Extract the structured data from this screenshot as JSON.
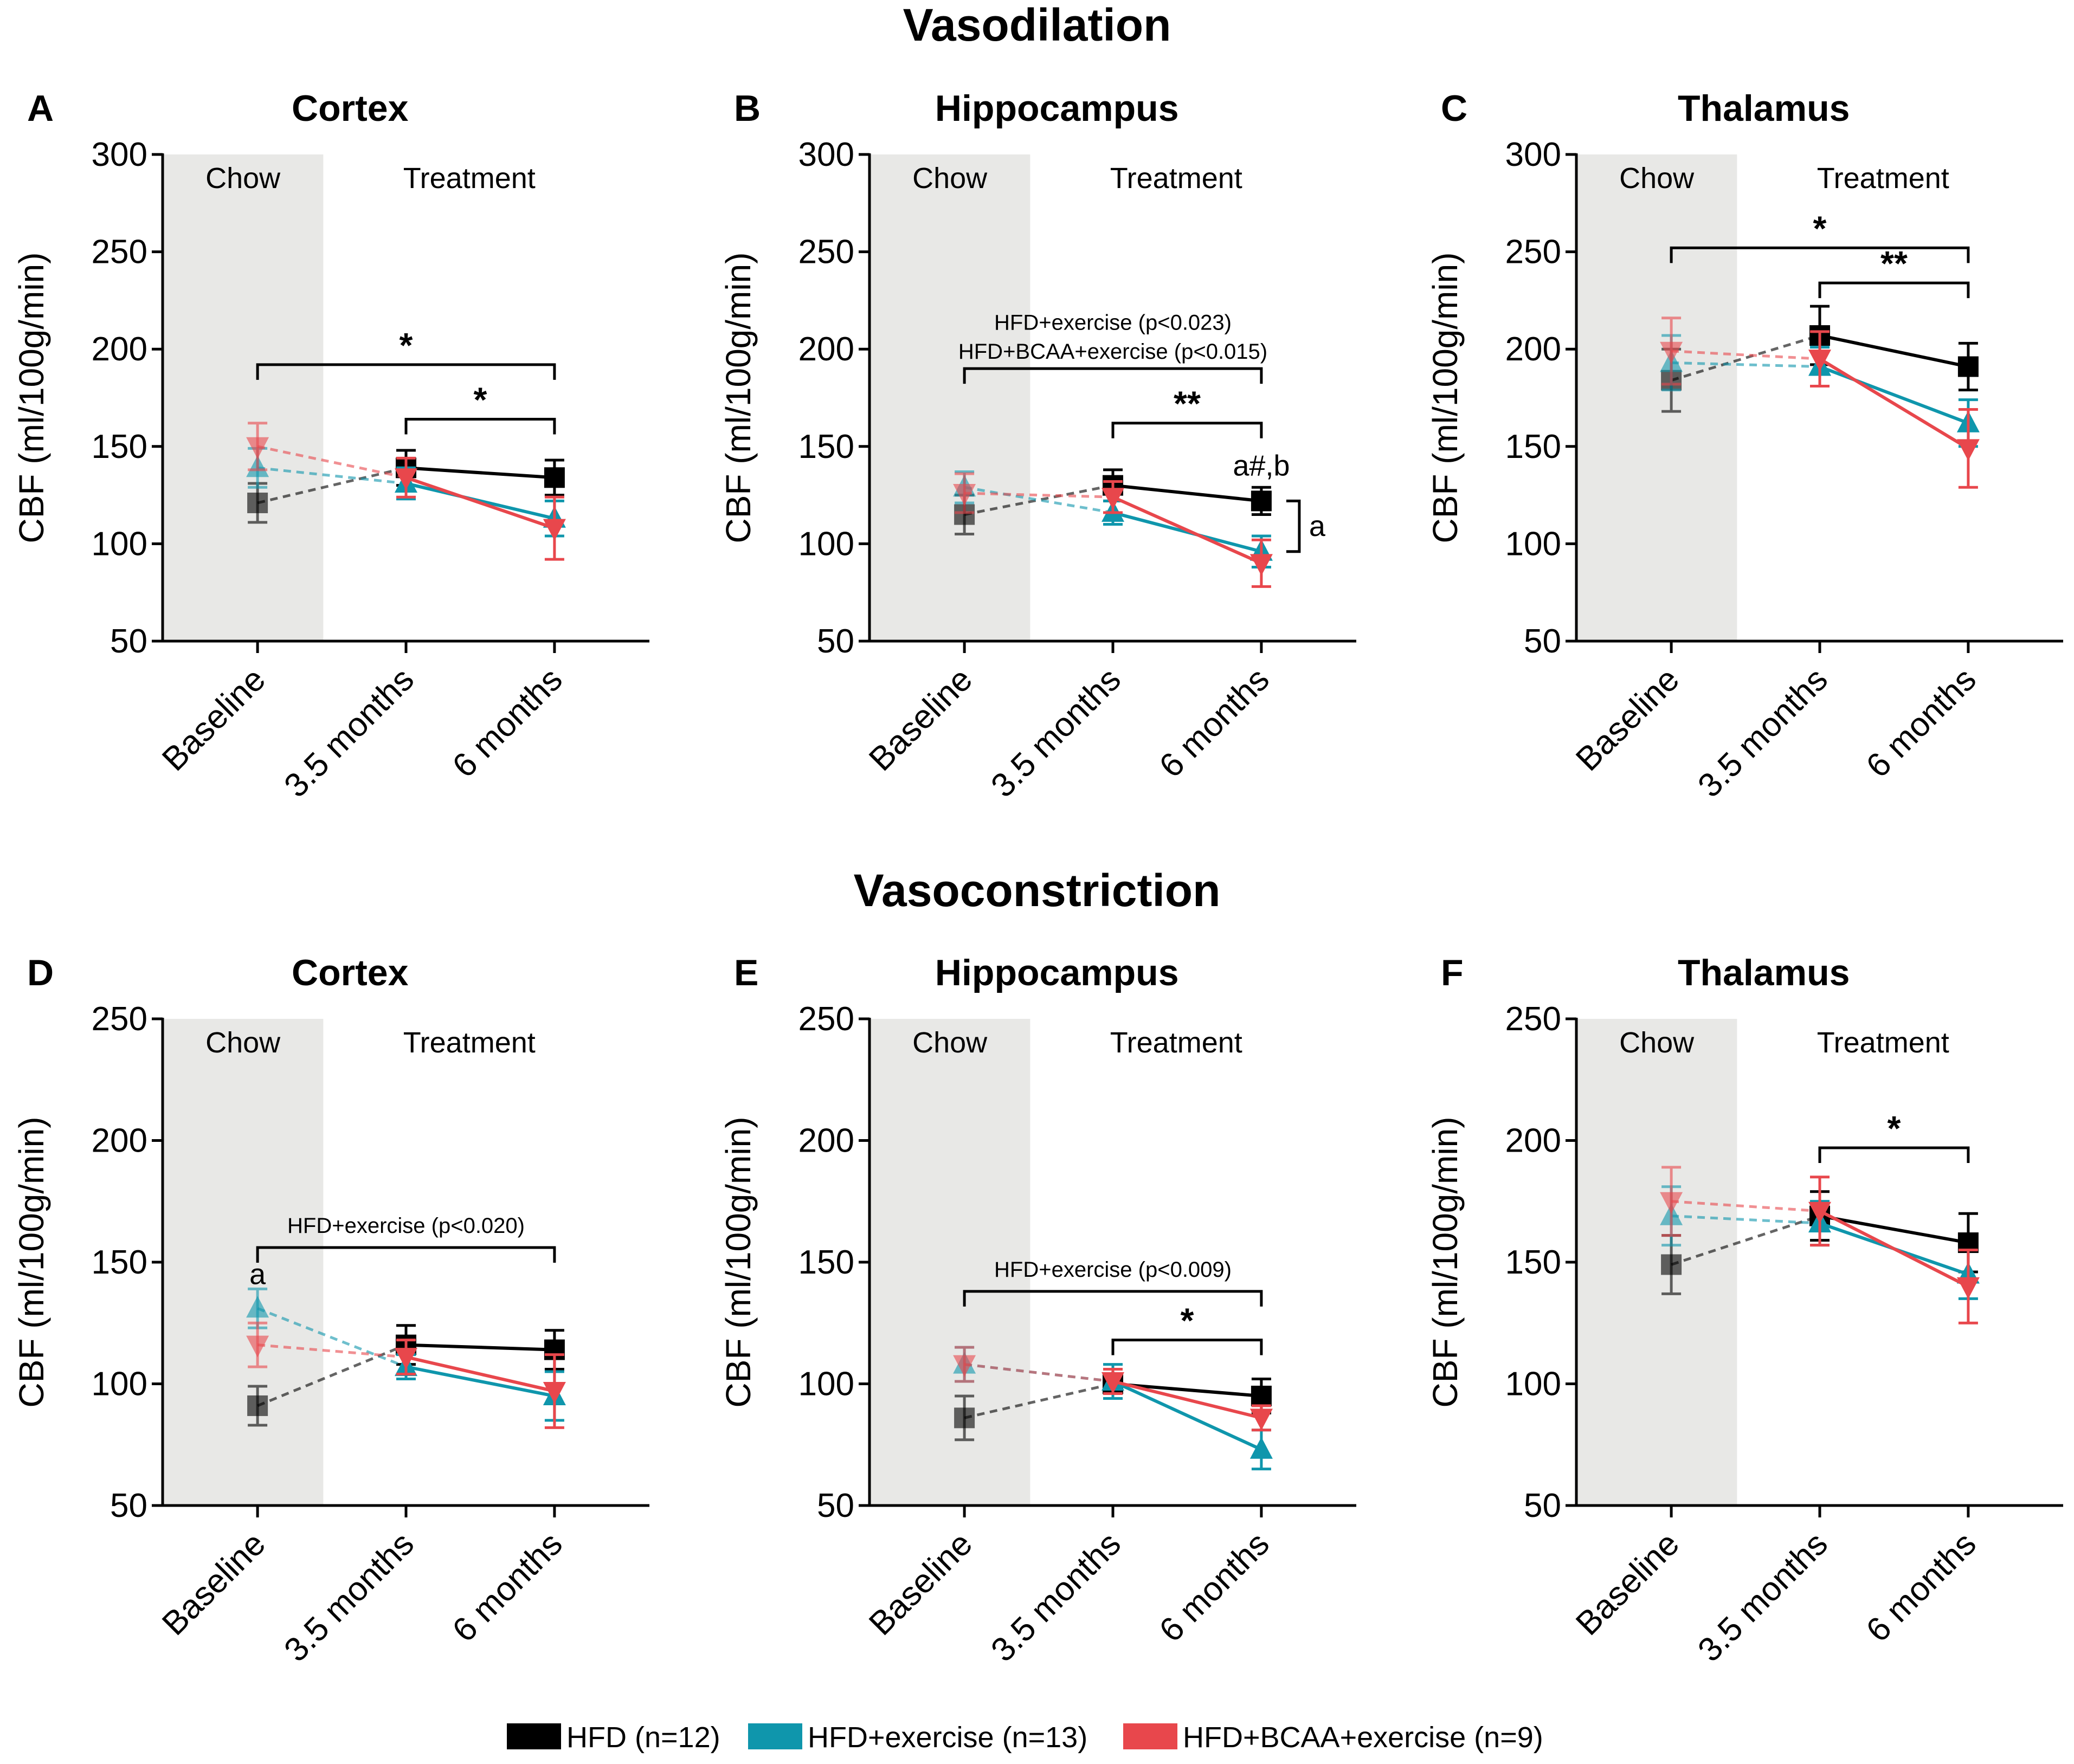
{
  "sections": {
    "top": "Vasodilation",
    "bottom": "Vasoconstriction"
  },
  "legend": [
    {
      "label": "HFD (n=12)",
      "color": "#000000"
    },
    {
      "label": "HFD+exercise (n=13)",
      "color": "#0f96ac"
    },
    {
      "label": "HFD+BCAA+exercise (n=9)",
      "color": "#e8474c"
    }
  ],
  "region_labels": {
    "chow": "Chow",
    "treatment": "Treatment"
  },
  "chart_data": [
    {
      "type": "line",
      "panel": "A",
      "title": "Cortex",
      "section": "Vasodilation",
      "ylabel": "CBF (ml/100g/min)",
      "ylim": [
        50,
        300
      ],
      "yticks": [
        50,
        100,
        150,
        200,
        250,
        300
      ],
      "categories": [
        "Baseline",
        "3.5 months",
        "6 months"
      ],
      "series": [
        {
          "name": "HFD (n=12)",
          "color": "#000000",
          "marker": "square",
          "values": [
            121,
            139,
            134
          ],
          "errors": [
            10,
            9,
            9
          ]
        },
        {
          "name": "HFD+exercise (n=13)",
          "color": "#0f96ac",
          "marker": "triangle-up",
          "values": [
            139,
            131,
            113
          ],
          "errors": [
            10,
            8,
            9
          ]
        },
        {
          "name": "HFD+BCAA+exercise (n=9)",
          "color": "#e8474c",
          "marker": "triangle-down",
          "values": [
            150,
            134,
            108
          ],
          "errors": [
            12,
            10,
            16
          ]
        }
      ],
      "annotations": {
        "brackets": [
          {
            "from": 0,
            "to": 2,
            "y": 192,
            "label": "*"
          },
          {
            "from": 1,
            "to": 2,
            "y": 164,
            "label": "*"
          }
        ],
        "stat_texts": [],
        "letters": [],
        "side_bracket": null
      }
    },
    {
      "type": "line",
      "panel": "B",
      "title": "Hippocampus",
      "section": "Vasodilation",
      "ylabel": "CBF (ml/100g/min)",
      "ylim": [
        50,
        300
      ],
      "yticks": [
        50,
        100,
        150,
        200,
        250,
        300
      ],
      "categories": [
        "Baseline",
        "3.5 months",
        "6 months"
      ],
      "series": [
        {
          "name": "HFD (n=12)",
          "color": "#000000",
          "marker": "square",
          "values": [
            115,
            130,
            122
          ],
          "errors": [
            10,
            8,
            7
          ]
        },
        {
          "name": "HFD+exercise (n=13)",
          "color": "#0f96ac",
          "marker": "triangle-up",
          "values": [
            129,
            116,
            96
          ],
          "errors": [
            8,
            6,
            8
          ]
        },
        {
          "name": "HFD+BCAA+exercise (n=9)",
          "color": "#e8474c",
          "marker": "triangle-down",
          "values": [
            126,
            124,
            90
          ],
          "errors": [
            10,
            8,
            12
          ]
        }
      ],
      "annotations": {
        "brackets": [
          {
            "from": 0,
            "to": 2,
            "y": 190,
            "label": ""
          },
          {
            "from": 1,
            "to": 2,
            "y": 162,
            "label": "**"
          }
        ],
        "stat_texts": [
          {
            "text": "HFD+exercise (p<0.023)",
            "y": 210
          },
          {
            "text": "HFD+BCAA+exercise (p<0.015)",
            "y": 195
          }
        ],
        "letters": [
          {
            "text": "a#,b",
            "x": 2,
            "y": 135
          }
        ],
        "side_bracket": {
          "x": 2,
          "y1": 122,
          "y2": 96,
          "label": "a"
        }
      }
    },
    {
      "type": "line",
      "panel": "C",
      "title": "Thalamus",
      "section": "Vasodilation",
      "ylabel": "CBF (ml/100g/min)",
      "ylim": [
        50,
        300
      ],
      "yticks": [
        50,
        100,
        150,
        200,
        250,
        300
      ],
      "categories": [
        "Baseline",
        "3.5 months",
        "6 months"
      ],
      "series": [
        {
          "name": "HFD (n=12)",
          "color": "#000000",
          "marker": "square",
          "values": [
            184,
            207,
            191
          ],
          "errors": [
            16,
            15,
            12
          ]
        },
        {
          "name": "HFD+exercise (n=13)",
          "color": "#0f96ac",
          "marker": "triangle-up",
          "values": [
            193,
            191,
            162
          ],
          "errors": [
            14,
            10,
            12
          ]
        },
        {
          "name": "HFD+BCAA+exercise (n=9)",
          "color": "#e8474c",
          "marker": "triangle-down",
          "values": [
            199,
            195,
            149
          ],
          "errors": [
            17,
            14,
            20
          ]
        }
      ],
      "annotations": {
        "brackets": [
          {
            "from": 0,
            "to": 2,
            "y": 252,
            "label": "*"
          },
          {
            "from": 1,
            "to": 2,
            "y": 234,
            "label": "**"
          }
        ],
        "stat_texts": [],
        "letters": [],
        "side_bracket": null
      }
    },
    {
      "type": "line",
      "panel": "D",
      "title": "Cortex",
      "section": "Vasoconstriction",
      "ylabel": "CBF (ml/100g/min)",
      "ylim": [
        50,
        250
      ],
      "yticks": [
        50,
        100,
        150,
        200,
        250
      ],
      "categories": [
        "Baseline",
        "3.5 months",
        "6 months"
      ],
      "series": [
        {
          "name": "HFD (n=12)",
          "color": "#000000",
          "marker": "square",
          "values": [
            91,
            116,
            114
          ],
          "errors": [
            8,
            8,
            8
          ]
        },
        {
          "name": "HFD+exercise (n=13)",
          "color": "#0f96ac",
          "marker": "triangle-up",
          "values": [
            131,
            107,
            95
          ],
          "errors": [
            8,
            5,
            10
          ]
        },
        {
          "name": "HFD+BCAA+exercise (n=9)",
          "color": "#e8474c",
          "marker": "triangle-down",
          "values": [
            116,
            111,
            97
          ],
          "errors": [
            9,
            7,
            15
          ]
        }
      ],
      "annotations": {
        "brackets": [
          {
            "from": 0,
            "to": 2,
            "y": 156,
            "label": ""
          }
        ],
        "stat_texts": [
          {
            "text": "HFD+exercise (p<0.020)",
            "y": 162
          }
        ],
        "letters": [
          {
            "text": "a",
            "x": 0,
            "y": 141
          }
        ],
        "side_bracket": null
      }
    },
    {
      "type": "line",
      "panel": "E",
      "title": "Hippocampus",
      "section": "Vasoconstriction",
      "ylabel": "CBF (ml/100g/min)",
      "ylim": [
        50,
        250
      ],
      "yticks": [
        50,
        100,
        150,
        200,
        250
      ],
      "categories": [
        "Baseline",
        "3.5 months",
        "6 months"
      ],
      "series": [
        {
          "name": "HFD (n=12)",
          "color": "#000000",
          "marker": "square",
          "values": [
            86,
            100,
            95
          ],
          "errors": [
            9,
            6,
            7
          ]
        },
        {
          "name": "HFD+exercise (n=13)",
          "color": "#0f96ac",
          "marker": "triangle-up",
          "values": [
            108,
            101,
            73
          ],
          "errors": [
            7,
            7,
            8
          ]
        },
        {
          "name": "HFD+BCAA+exercise (n=9)",
          "color": "#e8474c",
          "marker": "triangle-down",
          "values": [
            108,
            101,
            86
          ],
          "errors": [
            7,
            5,
            5
          ]
        }
      ],
      "annotations": {
        "brackets": [
          {
            "from": 0,
            "to": 2,
            "y": 138,
            "label": ""
          },
          {
            "from": 1,
            "to": 2,
            "y": 118,
            "label": "*"
          }
        ],
        "stat_texts": [
          {
            "text": "HFD+exercise (p<0.009)",
            "y": 144
          }
        ],
        "letters": [],
        "side_bracket": null
      }
    },
    {
      "type": "line",
      "panel": "F",
      "title": "Thalamus",
      "section": "Vasoconstriction",
      "ylabel": "CBF (ml/100g/min)",
      "ylim": [
        50,
        250
      ],
      "yticks": [
        50,
        100,
        150,
        200,
        250
      ],
      "categories": [
        "Baseline",
        "3.5 months",
        "6 months"
      ],
      "series": [
        {
          "name": "HFD (n=12)",
          "color": "#000000",
          "marker": "square",
          "values": [
            149,
            169,
            158
          ],
          "errors": [
            12,
            10,
            12
          ]
        },
        {
          "name": "HFD+exercise (n=13)",
          "color": "#0f96ac",
          "marker": "triangle-up",
          "values": [
            169,
            166,
            145
          ],
          "errors": [
            12,
            9,
            10
          ]
        },
        {
          "name": "HFD+BCAA+exercise (n=9)",
          "color": "#e8474c",
          "marker": "triangle-down",
          "values": [
            175,
            171,
            140
          ],
          "errors": [
            14,
            14,
            15
          ]
        }
      ],
      "annotations": {
        "brackets": [
          {
            "from": 1,
            "to": 2,
            "y": 197,
            "label": "*"
          }
        ],
        "stat_texts": [],
        "letters": [],
        "side_bracket": null
      }
    }
  ]
}
